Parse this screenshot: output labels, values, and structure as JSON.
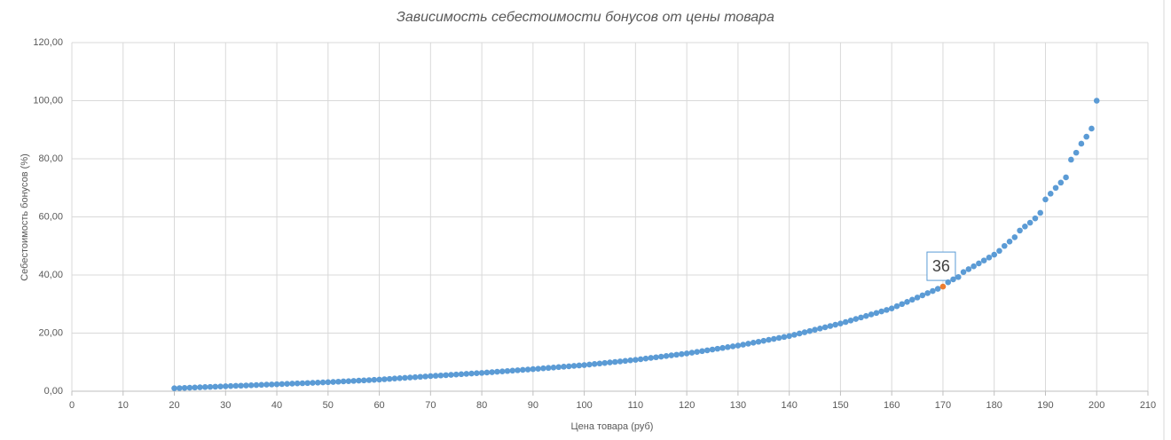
{
  "chart_data": {
    "type": "scatter",
    "title": "Зависимость себестоимости бонусов от цены товара",
    "x_label": "Цена товара (руб)",
    "y_label": "Себестоимость бонусов (%)",
    "x": [
      20,
      21,
      22,
      23,
      24,
      25,
      26,
      27,
      28,
      29,
      30,
      31,
      32,
      33,
      34,
      35,
      36,
      37,
      38,
      39,
      40,
      41,
      42,
      43,
      44,
      45,
      46,
      47,
      48,
      49,
      50,
      51,
      52,
      53,
      54,
      55,
      56,
      57,
      58,
      59,
      60,
      61,
      62,
      63,
      64,
      65,
      66,
      67,
      68,
      69,
      70,
      71,
      72,
      73,
      74,
      75,
      76,
      77,
      78,
      79,
      80,
      81,
      82,
      83,
      84,
      85,
      86,
      87,
      88,
      89,
      90,
      91,
      92,
      93,
      94,
      95,
      96,
      97,
      98,
      99,
      100,
      101,
      102,
      103,
      104,
      105,
      106,
      107,
      108,
      109,
      110,
      111,
      112,
      113,
      114,
      115,
      116,
      117,
      118,
      119,
      120,
      121,
      122,
      123,
      124,
      125,
      126,
      127,
      128,
      129,
      130,
      131,
      132,
      133,
      134,
      135,
      136,
      137,
      138,
      139,
      140,
      141,
      142,
      143,
      144,
      145,
      146,
      147,
      148,
      149,
      150,
      151,
      152,
      153,
      154,
      155,
      156,
      157,
      158,
      159,
      160,
      161,
      162,
      163,
      164,
      165,
      166,
      167,
      168,
      169,
      170,
      171,
      172,
      173,
      174,
      175,
      176,
      177,
      178,
      179,
      180,
      181,
      182,
      183,
      184,
      185,
      186,
      187,
      188,
      189,
      190,
      191,
      192,
      193,
      194,
      195,
      196,
      197,
      198,
      199,
      200
    ],
    "series": [
      {
        "color": "#5b9bd5",
        "values": [
          1.0,
          1.07,
          1.14,
          1.21,
          1.28,
          1.35,
          1.42,
          1.49,
          1.56,
          1.63,
          1.7,
          1.77,
          1.84,
          1.91,
          1.98,
          2.05,
          2.12,
          2.19,
          2.26,
          2.33,
          2.4,
          2.47,
          2.54,
          2.61,
          2.68,
          2.75,
          2.82,
          2.89,
          2.96,
          3.03,
          3.1,
          3.19,
          3.28,
          3.37,
          3.46,
          3.55,
          3.64,
          3.73,
          3.82,
          3.91,
          4.0,
          4.12,
          4.24,
          4.36,
          4.48,
          4.6,
          4.72,
          4.84,
          4.96,
          5.08,
          5.2,
          5.31,
          5.42,
          5.53,
          5.64,
          5.75,
          5.86,
          5.97,
          6.08,
          6.19,
          6.3,
          6.43,
          6.56,
          6.69,
          6.82,
          6.95,
          7.08,
          7.21,
          7.34,
          7.47,
          7.6,
          7.74,
          7.88,
          8.02,
          8.16,
          8.3,
          8.44,
          8.58,
          8.72,
          8.86,
          9.0,
          9.18,
          9.36,
          9.54,
          9.72,
          9.9,
          10.08,
          10.26,
          10.44,
          10.62,
          10.8,
          11.02,
          11.24,
          11.46,
          11.68,
          11.9,
          12.12,
          12.34,
          12.56,
          12.78,
          13.0,
          13.27,
          13.54,
          13.81,
          14.08,
          14.35,
          14.62,
          14.89,
          15.16,
          15.43,
          15.7,
          16.03,
          16.36,
          16.69,
          17.02,
          17.35,
          17.68,
          18.01,
          18.34,
          18.67,
          19.0,
          19.43,
          19.86,
          20.29,
          20.72,
          21.15,
          21.58,
          22.01,
          22.44,
          22.87,
          23.3,
          23.82,
          24.34,
          24.86,
          25.38,
          25.9,
          26.42,
          26.94,
          27.46,
          27.98,
          28.5,
          29.25,
          30.0,
          30.75,
          31.5,
          32.25,
          33.0,
          33.75,
          34.5,
          35.25,
          36,
          37.5,
          38.5,
          39.3,
          41.0,
          42.0,
          43.0,
          44.0,
          45.0,
          46.0,
          47.0,
          48.3,
          50.0,
          51.5,
          53.0,
          55.3,
          56.7,
          58.0,
          59.5,
          61.4,
          66.0,
          68.0,
          70.0,
          71.8,
          73.6,
          79.7,
          82.1,
          85.2,
          87.6,
          90.4,
          100
        ]
      }
    ],
    "highlight_index": 150,
    "highlight_color": "#ed7d31",
    "xlim": [
      0,
      210
    ],
    "xticks": [
      0,
      10,
      20,
      30,
      40,
      50,
      60,
      70,
      80,
      90,
      100,
      110,
      120,
      130,
      140,
      150,
      160,
      170,
      180,
      190,
      200,
      210
    ],
    "ylim": [
      0,
      120
    ],
    "yticks": [
      {
        "value": 0,
        "label": "0,00"
      },
      {
        "value": 20,
        "label": "20,00"
      },
      {
        "value": 40,
        "label": "40,00"
      },
      {
        "value": 60,
        "label": "60,00"
      },
      {
        "value": 80,
        "label": "80,00"
      },
      {
        "value": 100,
        "label": "100,00"
      },
      {
        "value": 120,
        "label": "120,00"
      }
    ],
    "grid": true
  }
}
